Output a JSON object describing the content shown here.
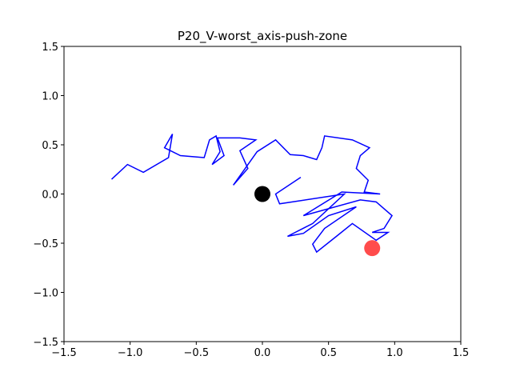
{
  "chart_data": {
    "type": "line",
    "title": "P20_V-worst_axis-push-zone",
    "series": [
      {
        "color": "#0000ff",
        "x": [
          -1.14,
          -1.02,
          -0.9,
          -0.71,
          -0.68,
          -0.74,
          -0.62,
          -0.44,
          -0.4,
          -0.35,
          -0.32,
          -0.38,
          -0.29,
          -0.34,
          -0.17,
          -0.05,
          -0.17,
          -0.11,
          -0.22,
          -0.04,
          0.1,
          0.21,
          0.31,
          0.41,
          0.45,
          0.47,
          0.68,
          0.81,
          0.74,
          0.71,
          0.8,
          0.77,
          0.89,
          0.6,
          0.31,
          0.74,
          0.86,
          0.98,
          0.92,
          0.83,
          0.95,
          0.86,
          0.68,
          0.56,
          0.41,
          0.38,
          0.47,
          0.71,
          0.5,
          0.31,
          0.19,
          0.38,
          0.62,
          0.13,
          0.1,
          0.29
        ],
        "values": [
          0.15,
          0.3,
          0.22,
          0.37,
          0.61,
          0.47,
          0.39,
          0.37,
          0.55,
          0.59,
          0.43,
          0.3,
          0.39,
          0.57,
          0.57,
          0.55,
          0.44,
          0.26,
          0.09,
          0.43,
          0.55,
          0.4,
          0.39,
          0.35,
          0.47,
          0.59,
          0.55,
          0.47,
          0.39,
          0.26,
          0.14,
          0.02,
          0.0,
          0.02,
          -0.22,
          -0.06,
          -0.08,
          -0.22,
          -0.35,
          -0.39,
          -0.39,
          -0.47,
          -0.3,
          -0.43,
          -0.59,
          -0.51,
          -0.35,
          -0.13,
          -0.22,
          -0.4,
          -0.43,
          -0.3,
          0.0,
          -0.1,
          0.0,
          0.17
        ]
      }
    ],
    "points": [
      {
        "x": 0,
        "y": 0,
        "color": "#000000"
      },
      {
        "x": 0.83,
        "y": -0.55,
        "color": "#ff0000"
      }
    ],
    "xlim": [
      -1.5,
      1.5
    ],
    "ylim": [
      -1.5,
      1.5
    ],
    "xticks": [
      {
        "value": -1.5,
        "label": "−1.5"
      },
      {
        "value": -1.0,
        "label": "−1.0"
      },
      {
        "value": -0.5,
        "label": "−0.5"
      },
      {
        "value": 0,
        "label": "0.0"
      },
      0.5,
      {
        "value": 1.0,
        "label": "1.0"
      },
      1.5
    ],
    "yticks": [
      {
        "value": -1.5,
        "label": "−1.5"
      },
      {
        "value": -1.0,
        "label": "−1.0"
      },
      {
        "value": -0.5,
        "label": "−0.5"
      },
      {
        "value": 0,
        "label": "0.0"
      },
      0.5,
      {
        "value": 1.0,
        "label": "1.0"
      },
      1.5
    ],
    "grid": false
  }
}
